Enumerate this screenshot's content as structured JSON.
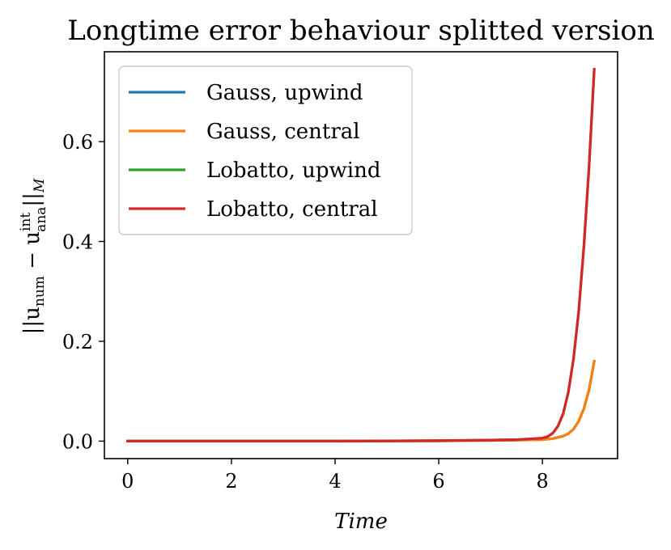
{
  "chart_data": {
    "type": "line",
    "title": "Longtime error behaviour splitted version",
    "xlabel": "Time",
    "ylabel": "||u_num − u_ana^int||_M",
    "ylabel_parts": {
      "open": "||u",
      "num_sub": "num",
      "minus": " − u",
      "int_sup": "int",
      "ana_sub": "ana",
      "close": "||",
      "M_sub": "M"
    },
    "xlim": [
      -0.45,
      9.45
    ],
    "ylim": [
      -0.035,
      0.78
    ],
    "xticks": [
      0,
      2,
      4,
      6,
      8
    ],
    "xtick_labels": [
      "0",
      "2",
      "4",
      "6",
      "8"
    ],
    "yticks": [
      0.0,
      0.2,
      0.4,
      0.6
    ],
    "ytick_labels": [
      "0.0",
      "0.2",
      "0.4",
      "0.6"
    ],
    "grid": false,
    "legend_position": "top-left",
    "series": [
      {
        "name": "Gauss, upwind",
        "color": "#1f77b4",
        "x": [
          0,
          1,
          2,
          3,
          4,
          5,
          6,
          6.5,
          7,
          7.5,
          8,
          8.2,
          8.4,
          8.5,
          8.6,
          8.7,
          8.8,
          8.9,
          9.0
        ],
        "values": [
          0,
          0,
          0,
          0,
          0,
          0,
          0.0005,
          0.001,
          0.0015,
          0.002,
          0.003,
          0.005,
          0.01,
          0.015,
          0.024,
          0.04,
          0.065,
          0.103,
          0.16
        ]
      },
      {
        "name": "Gauss, central",
        "color": "#ff7f0e",
        "x": [
          0,
          1,
          2,
          3,
          4,
          5,
          6,
          6.5,
          7,
          7.5,
          8,
          8.2,
          8.4,
          8.5,
          8.6,
          8.7,
          8.8,
          8.9,
          9.0
        ],
        "values": [
          0,
          0,
          0,
          0,
          0,
          0,
          0.0005,
          0.001,
          0.0015,
          0.002,
          0.003,
          0.005,
          0.01,
          0.015,
          0.024,
          0.04,
          0.065,
          0.103,
          0.16
        ]
      },
      {
        "name": "Lobatto, upwind",
        "color": "#2ca02c",
        "x": [
          0,
          1,
          2,
          3,
          4,
          5,
          6,
          6.5,
          7,
          7.5,
          8,
          8.1,
          8.2,
          8.3,
          8.4,
          8.5,
          8.6,
          8.7,
          8.8,
          8.9,
          9.0
        ],
        "values": [
          0,
          0,
          0,
          0,
          0,
          0.0005,
          0.001,
          0.0015,
          0.002,
          0.003,
          0.006,
          0.009,
          0.016,
          0.03,
          0.055,
          0.098,
          0.165,
          0.26,
          0.39,
          0.55,
          0.745
        ]
      },
      {
        "name": "Lobatto, central",
        "color": "#d62728",
        "x": [
          0,
          1,
          2,
          3,
          4,
          5,
          6,
          6.5,
          7,
          7.5,
          8,
          8.1,
          8.2,
          8.3,
          8.4,
          8.5,
          8.6,
          8.7,
          8.8,
          8.9,
          9.0
        ],
        "values": [
          0,
          0,
          0,
          0,
          0,
          0.0005,
          0.001,
          0.0015,
          0.002,
          0.003,
          0.006,
          0.009,
          0.016,
          0.03,
          0.055,
          0.098,
          0.165,
          0.26,
          0.39,
          0.55,
          0.745
        ]
      }
    ]
  }
}
